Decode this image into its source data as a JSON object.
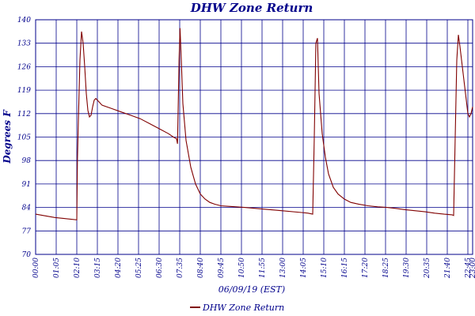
{
  "chart_data": {
    "type": "line",
    "title": "DHW Zone Return",
    "xlabel": "06/09/19 (EST)",
    "ylabel": "Degrees F",
    "ylim": [
      70,
      140
    ],
    "yticks": [
      70,
      77,
      84,
      91,
      98,
      105,
      112,
      119,
      126,
      133,
      140
    ],
    "ytick_labels": [
      "70",
      "77",
      "84",
      "91",
      "98",
      "105",
      "112",
      "119",
      "126",
      "133",
      "140"
    ],
    "xticks": [
      "00:00",
      "01:05",
      "02:10",
      "03:15",
      "04:20",
      "05:25",
      "06:30",
      "07:35",
      "08:40",
      "09:45",
      "10:50",
      "11:55",
      "13:00",
      "14:05",
      "15:10",
      "16:15",
      "17:20",
      "18:25",
      "19:30",
      "20:35",
      "21:40",
      "22:45",
      "23:00"
    ],
    "grid": true,
    "legend": "bottom-center",
    "colors": {
      "series": "#800000",
      "grid": "#00008b",
      "text": "#00008b"
    },
    "series": [
      {
        "name": "DHW Zone Return",
        "x": [
          "00:00",
          "00:30",
          "01:00",
          "01:30",
          "02:10",
          "02:12",
          "02:15",
          "02:20",
          "02:25",
          "02:30",
          "02:35",
          "02:40",
          "02:45",
          "02:50",
          "02:55",
          "03:00",
          "03:05",
          "03:10",
          "03:15",
          "03:20",
          "03:25",
          "03:30",
          "04:00",
          "04:30",
          "05:00",
          "05:30",
          "06:00",
          "06:30",
          "07:00",
          "07:15",
          "07:25",
          "07:28",
          "07:33",
          "07:36",
          "07:40",
          "07:45",
          "07:55",
          "08:10",
          "08:25",
          "08:40",
          "08:55",
          "09:10",
          "09:25",
          "09:45",
          "10:15",
          "11:00",
          "12:00",
          "13:00",
          "14:00",
          "14:20",
          "14:35",
          "14:40",
          "14:45",
          "14:50",
          "14:55",
          "15:05",
          "15:15",
          "15:25",
          "15:40",
          "15:55",
          "16:15",
          "16:35",
          "17:00",
          "17:30",
          "18:00",
          "18:30",
          "19:00",
          "19:30",
          "20:00",
          "20:30",
          "21:00",
          "21:30",
          "21:55",
          "22:00",
          "22:05",
          "22:10",
          "22:15",
          "22:20",
          "22:30",
          "22:40",
          "22:45",
          "22:50",
          "22:55",
          "23:00"
        ],
        "values": [
          82,
          81.5,
          81,
          80.7,
          80.3,
          98,
          110,
          128,
          136.5,
          133,
          126,
          118,
          113,
          111,
          111.5,
          114,
          116,
          116.5,
          116,
          115.5,
          115,
          114.5,
          113.5,
          112.5,
          111.5,
          110.5,
          109,
          107.5,
          106,
          105,
          104.5,
          103,
          128,
          137.5,
          128,
          115,
          104,
          96,
          91,
          88,
          86.5,
          85.5,
          85,
          84.5,
          84.3,
          84,
          83.5,
          83,
          82.5,
          82.3,
          82,
          105,
          133,
          134.5,
          118,
          106,
          99,
          94,
          90,
          88,
          86.5,
          85.5,
          85,
          84.5,
          84.2,
          84,
          83.7,
          83.3,
          83,
          82.7,
          82.3,
          82,
          81.8,
          81.6,
          105,
          128,
          135.5,
          132,
          124,
          116,
          112,
          111,
          112,
          114
        ]
      }
    ]
  }
}
